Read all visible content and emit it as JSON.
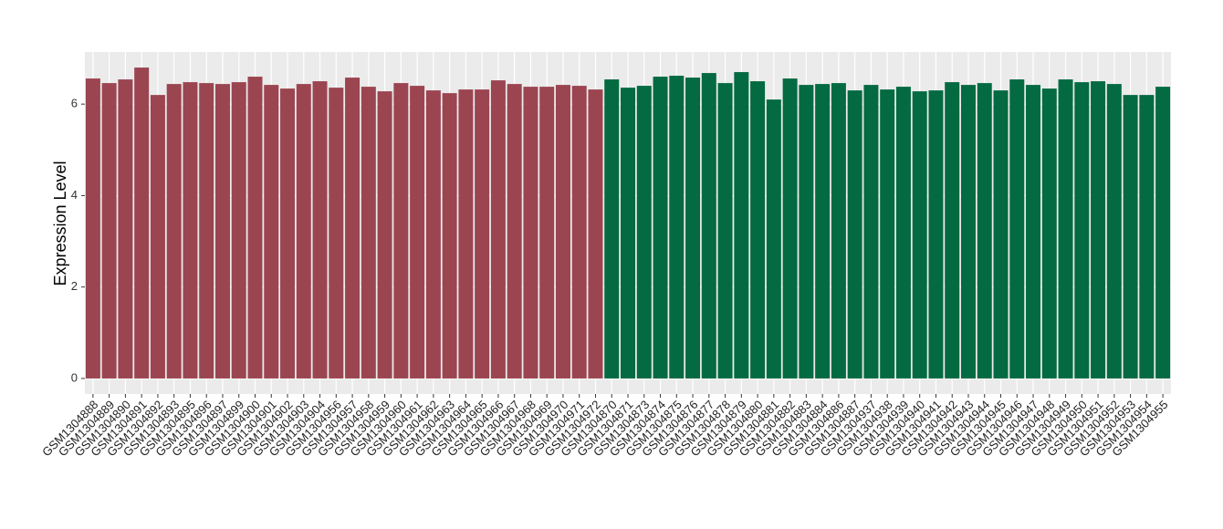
{
  "chart_data": {
    "type": "bar",
    "y_label": "Expression Level",
    "ylim": [
      -0.34,
      7.14
    ],
    "yticks": [
      0,
      2,
      4,
      6
    ],
    "grid": true,
    "series": [
      {
        "color": "#9b4551",
        "categories": [
          "GSM1304888",
          "GSM1304889",
          "GSM1304890",
          "GSM1304891",
          "GSM1304892",
          "GSM1304893",
          "GSM1304895",
          "GSM1304896",
          "GSM1304897",
          "GSM1304899",
          "GSM1304900",
          "GSM1304901",
          "GSM1304902",
          "GSM1304903",
          "GSM1304904",
          "GSM1304956",
          "GSM1304957",
          "GSM1304958",
          "GSM1304959",
          "GSM1304960",
          "GSM1304961",
          "GSM1304962",
          "GSM1304963",
          "GSM1304964",
          "GSM1304965",
          "GSM1304966",
          "GSM1304967",
          "GSM1304968",
          "GSM1304969",
          "GSM1304970",
          "GSM1304971",
          "GSM1304972"
        ],
        "values": [
          6.56,
          6.46,
          6.54,
          6.8,
          6.2,
          6.44,
          6.48,
          6.46,
          6.44,
          6.48,
          6.6,
          6.42,
          6.34,
          6.44,
          6.5,
          6.36,
          6.58,
          6.38,
          6.28,
          6.46,
          6.4,
          6.3,
          6.24,
          6.32,
          6.32,
          6.52,
          6.44,
          6.38,
          6.38,
          6.42,
          6.4,
          6.32
        ]
      },
      {
        "color": "#046a41",
        "categories": [
          "GSM1304870",
          "GSM1304871",
          "GSM1304873",
          "GSM1304874",
          "GSM1304875",
          "GSM1304876",
          "GSM1304877",
          "GSM1304878",
          "GSM1304879",
          "GSM1304880",
          "GSM1304881",
          "GSM1304882",
          "GSM1304883",
          "GSM1304884",
          "GSM1304886",
          "GSM1304887",
          "GSM1304937",
          "GSM1304938",
          "GSM1304939",
          "GSM1304940",
          "GSM1304941",
          "GSM1304942",
          "GSM1304943",
          "GSM1304944",
          "GSM1304945",
          "GSM1304946",
          "GSM1304947",
          "GSM1304948",
          "GSM1304949",
          "GSM1304950",
          "GSM1304951",
          "GSM1304952",
          "GSM1304953",
          "GSM1304954",
          "GSM1304955"
        ],
        "values": [
          6.54,
          6.36,
          6.4,
          6.6,
          6.62,
          6.58,
          6.68,
          6.46,
          6.7,
          6.5,
          6.1,
          6.56,
          6.42,
          6.44,
          6.46,
          6.3,
          6.42,
          6.32,
          6.38,
          6.28,
          6.3,
          6.48,
          6.42,
          6.46,
          6.3,
          6.54,
          6.42,
          6.34,
          6.54,
          6.48,
          6.5,
          6.44,
          6.2,
          6.2,
          6.38
        ]
      }
    ]
  }
}
